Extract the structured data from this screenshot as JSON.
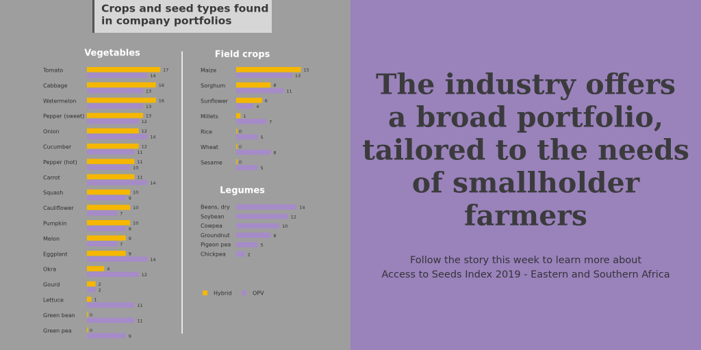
{
  "header": {
    "title_lines": [
      "Crops and seed types found",
      "in company portfolios"
    ]
  },
  "headline": [
    "The industry offers",
    "a broad portfolio,",
    "tailored to the needs",
    "of smallholder",
    "farmers"
  ],
  "subtitle": [
    "Follow the story this week to learn more about",
    "Access to Seeds Index 2019 - Eastern and Southern Africa"
  ],
  "chart_data": [
    {
      "type": "bar",
      "orientation": "horizontal",
      "title": "Vegetables",
      "categories": [
        "Tomato",
        "Cabbage",
        "Watermelon",
        "Pepper (sweet)",
        "Onion",
        "Cucumber",
        "Pepper (hot)",
        "Carrot",
        "Squash",
        "Cauliflower",
        "Pumpkin",
        "Melon",
        "Eggplant",
        "Okra",
        "Gourd",
        "Lettuce",
        "Green bean",
        "Green pea"
      ],
      "series": [
        {
          "name": "Hybrid",
          "color": "#f6b700",
          "values": [
            17,
            16,
            16,
            13,
            12,
            12,
            11,
            11,
            10,
            10,
            10,
            9,
            9,
            4,
            2,
            1,
            0,
            0
          ]
        },
        {
          "name": "OPV",
          "color": "#a68bc9",
          "values": [
            14,
            13,
            13,
            12,
            14,
            11,
            10,
            14,
            9,
            7,
            9,
            7,
            14,
            12,
            2,
            11,
            11,
            9
          ]
        }
      ]
    },
    {
      "type": "bar",
      "orientation": "horizontal",
      "title": "Field crops",
      "categories": [
        "Maize",
        "Sorghum",
        "Sunflower",
        "Millets",
        "Rice",
        "Wheat",
        "Sesame"
      ],
      "series": [
        {
          "values": [
            15,
            8,
            6,
            1,
            0,
            0,
            0
          ]
        },
        {
          "values": [
            13,
            11,
            4,
            7,
            5,
            8,
            5
          ]
        }
      ]
    },
    {
      "type": "bar",
      "orientation": "horizontal",
      "title": "Legumes",
      "categories": [
        "Beans, dry",
        "Soybean",
        "Cowpea",
        "Groundnut",
        "Pigeon pea",
        "Chickpea"
      ],
      "series": [
        {
          "values": [
            null,
            null,
            null,
            null,
            null,
            null
          ]
        },
        {
          "values": [
            14,
            12,
            10,
            8,
            5,
            2
          ]
        }
      ]
    }
  ]
}
